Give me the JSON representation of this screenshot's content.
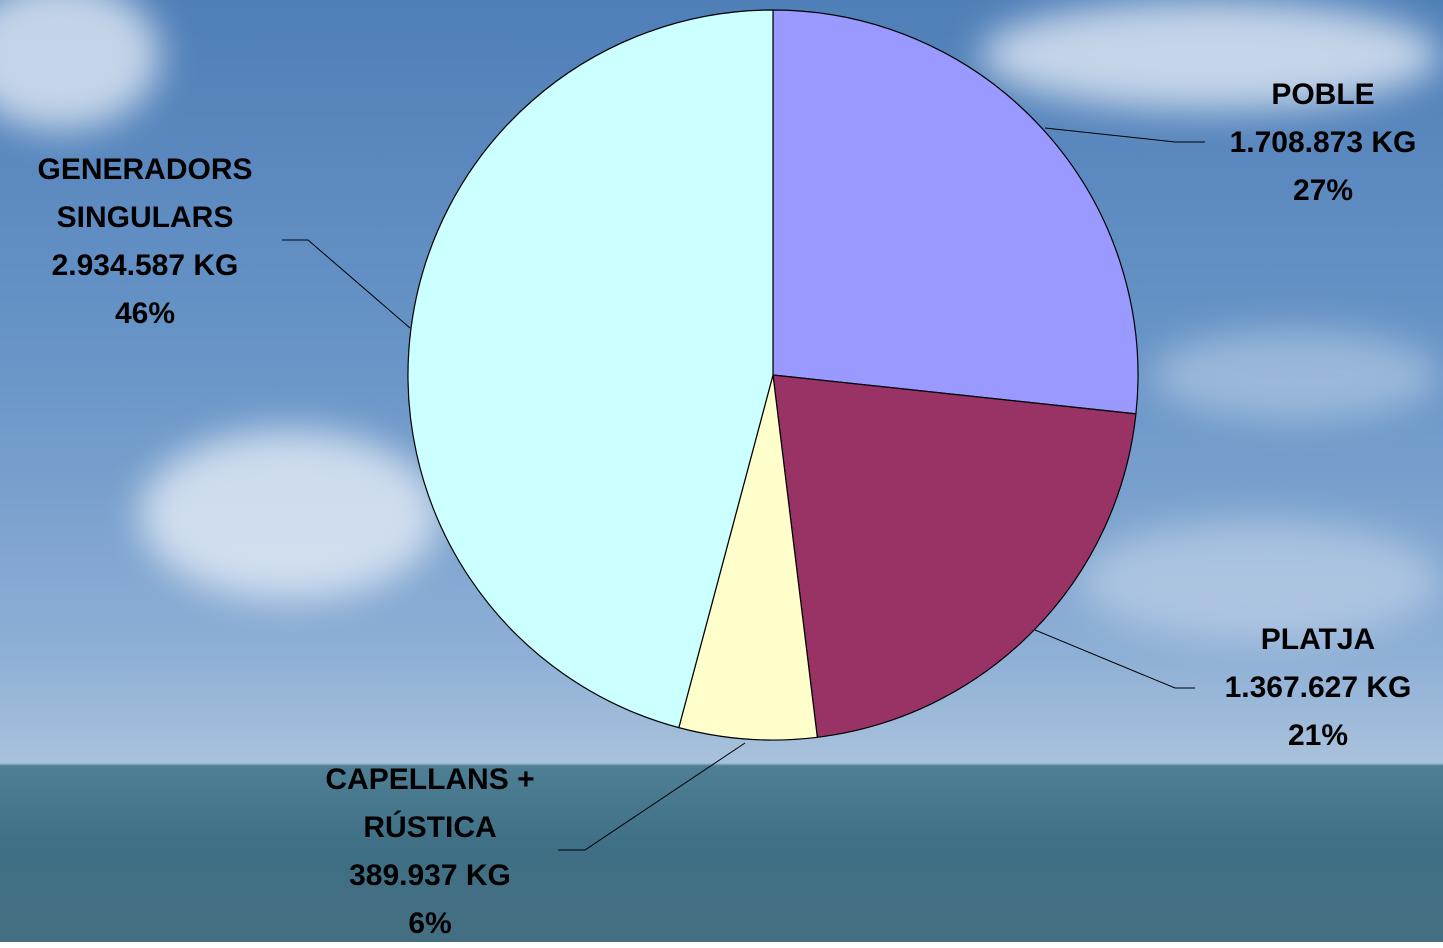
{
  "chart_data": {
    "type": "pie",
    "categories": [
      "POBLE",
      "PLATJA",
      "CAPELLANS + RÚSTICA",
      "GENERADORS SINGULARS"
    ],
    "values": [
      1708873,
      1367627,
      389937,
      2934587
    ],
    "value_labels": [
      "1.708.873 KG",
      "1.367.627 KG",
      "389.937 KG",
      "2.934.587 KG"
    ],
    "percent_labels": [
      "27%",
      "21%",
      "6%",
      "46%"
    ],
    "colors": [
      "#9999ff",
      "#993366",
      "#ffffcc",
      "#ccffff"
    ]
  }
}
